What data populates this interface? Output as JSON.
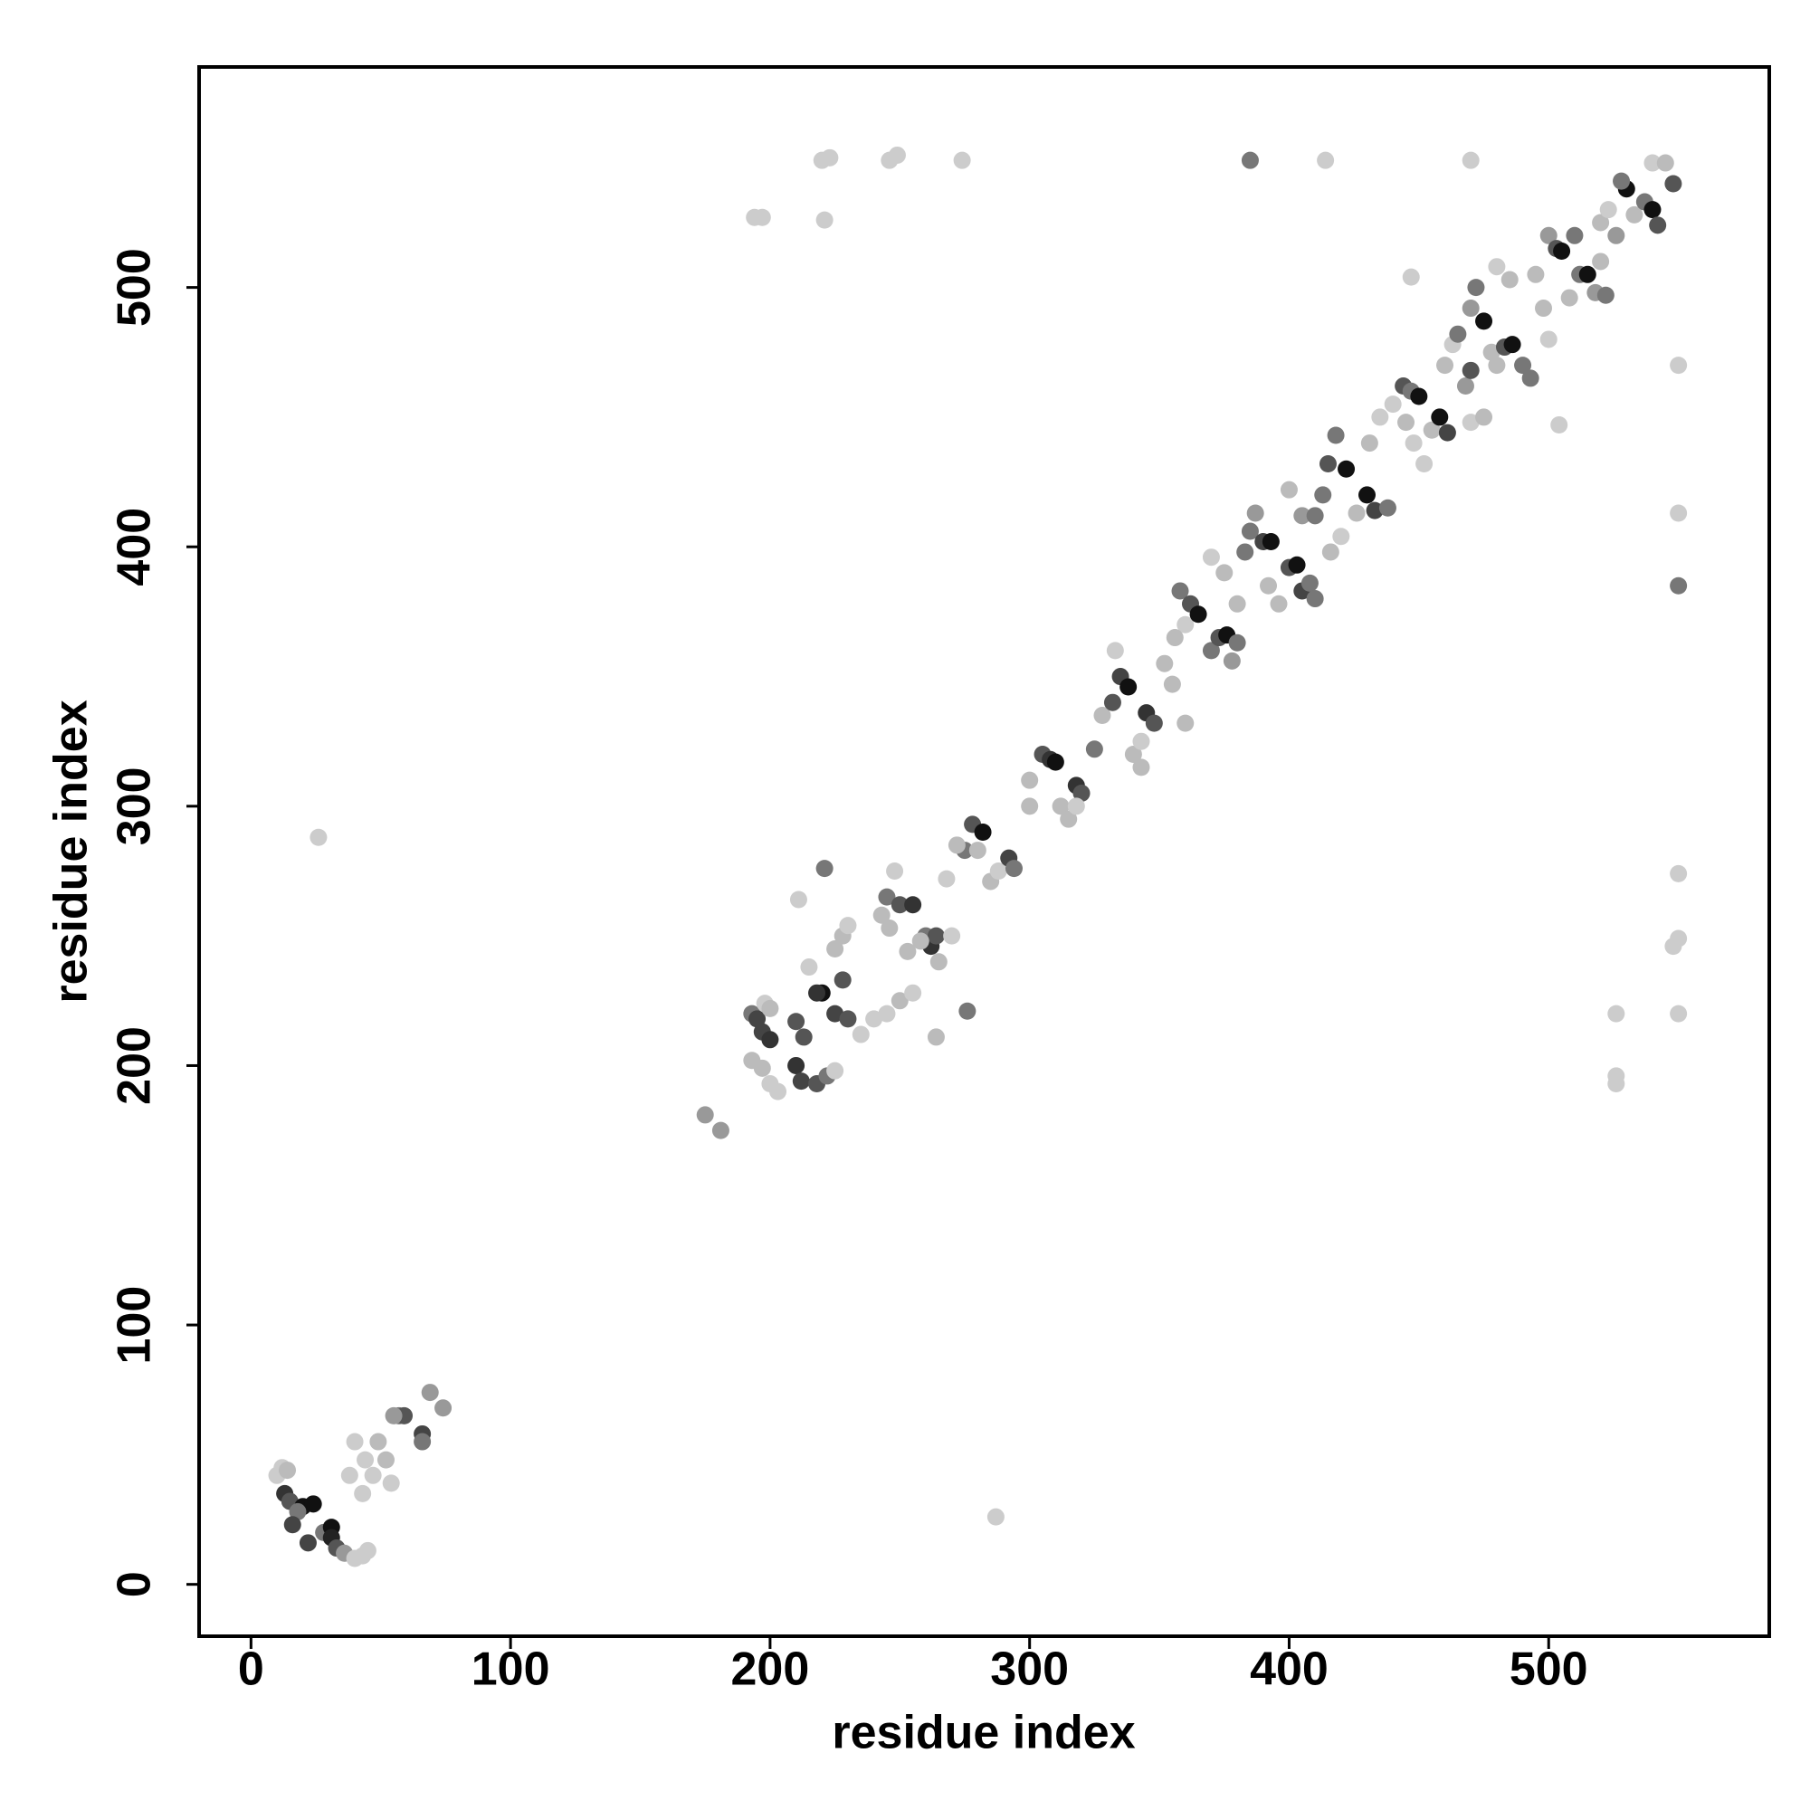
{
  "chart_data": {
    "type": "scatter",
    "x_label": "residue index",
    "y_label": "residue index",
    "xlim": [
      -20,
      585
    ],
    "ylim": [
      -20,
      585
    ],
    "xticks": [
      0,
      100,
      200,
      300,
      400,
      500
    ],
    "yticks": [
      0,
      100,
      200,
      300,
      400,
      500
    ],
    "grid": false,
    "x": [
      10,
      12,
      14,
      13,
      15,
      20,
      24,
      18,
      16,
      22,
      28,
      31,
      31,
      33,
      36,
      40,
      43,
      45,
      38,
      44,
      49,
      47,
      52,
      54,
      40,
      43,
      57,
      59,
      66,
      66,
      69,
      74,
      55,
      26,
      287,
      175,
      181,
      221,
      276,
      264,
      211,
      194,
      197,
      220,
      223,
      221,
      246,
      249,
      274,
      385,
      414,
      470,
      550,
      550,
      550,
      550,
      550,
      548,
      526,
      550,
      526,
      526,
      447,
      504,
      193,
      195,
      197,
      200,
      193,
      197,
      200,
      203,
      210,
      212,
      218,
      222,
      225,
      210,
      213,
      220,
      218,
      225,
      230,
      228,
      225,
      228,
      230,
      215,
      198,
      200,
      245,
      250,
      255,
      243,
      248,
      246,
      260,
      262,
      264,
      258,
      253,
      240,
      245,
      250,
      255,
      235,
      265,
      270,
      275,
      278,
      280,
      282,
      285,
      288,
      292,
      294,
      272,
      268,
      300,
      305,
      308,
      310,
      300,
      312,
      318,
      320,
      315,
      318,
      325,
      328,
      332,
      335,
      338,
      333,
      340,
      343,
      345,
      348,
      343,
      352,
      355,
      360,
      358,
      362,
      365,
      360,
      356,
      370,
      373,
      376,
      378,
      380,
      383,
      385,
      387,
      390,
      393,
      370,
      375,
      380,
      392,
      396,
      400,
      403,
      405,
      408,
      410,
      400,
      405,
      410,
      413,
      415,
      418,
      422,
      416,
      420,
      430,
      433,
      438,
      426,
      431,
      435,
      440,
      444,
      447,
      450,
      445,
      448,
      455,
      458,
      461,
      452,
      460,
      463,
      465,
      470,
      472,
      468,
      470,
      475,
      478,
      470,
      475,
      480,
      483,
      486,
      490,
      493,
      480,
      485,
      495,
      500,
      503,
      505,
      508,
      512,
      515,
      518,
      522,
      520,
      523,
      526,
      530,
      533,
      537,
      540,
      542,
      528,
      540,
      548,
      545,
      498,
      500,
      510,
      520
    ],
    "values": [
      42,
      45,
      44,
      35,
      32,
      30,
      31,
      28,
      23,
      16,
      20,
      22,
      18,
      14,
      12,
      10,
      11,
      13,
      42,
      48,
      55,
      42,
      48,
      39,
      55,
      35,
      65,
      65,
      58,
      55,
      74,
      68,
      65,
      288,
      26,
      181,
      175,
      276,
      221,
      211,
      264,
      527,
      527,
      549,
      550,
      526,
      549,
      551,
      549,
      549,
      549,
      549,
      470,
      413,
      385,
      274,
      249,
      246,
      220,
      220,
      196,
      193,
      504,
      447,
      220,
      218,
      213,
      210,
      202,
      199,
      193,
      190,
      200,
      194,
      193,
      196,
      198,
      217,
      211,
      228,
      228,
      220,
      218,
      233,
      245,
      250,
      254,
      238,
      224,
      222,
      265,
      262,
      262,
      258,
      275,
      253,
      250,
      246,
      250,
      248,
      244,
      218,
      220,
      225,
      228,
      212,
      240,
      250,
      283,
      293,
      283,
      290,
      271,
      275,
      280,
      276,
      285,
      272,
      310,
      320,
      318,
      317,
      300,
      300,
      308,
      305,
      295,
      300,
      322,
      335,
      340,
      350,
      346,
      360,
      320,
      325,
      336,
      332,
      315,
      355,
      347,
      370,
      383,
      378,
      374,
      332,
      365,
      360,
      365,
      366,
      356,
      363,
      398,
      406,
      413,
      402,
      402,
      396,
      390,
      378,
      385,
      378,
      392,
      393,
      383,
      386,
      380,
      422,
      412,
      412,
      420,
      432,
      443,
      430,
      398,
      404,
      420,
      414,
      415,
      413,
      440,
      450,
      455,
      462,
      460,
      458,
      448,
      440,
      445,
      450,
      444,
      432,
      470,
      478,
      482,
      492,
      500,
      462,
      468,
      487,
      475,
      448,
      450,
      470,
      477,
      478,
      470,
      465,
      508,
      503,
      505,
      520,
      515,
      514,
      496,
      505,
      505,
      498,
      497,
      525,
      530,
      520,
      538,
      528,
      533,
      530,
      524,
      541,
      548,
      540,
      548,
      492,
      480,
      520,
      510
    ],
    "colors": [
      "#ccc",
      "#ccc",
      "#bbb",
      "#333",
      "#555",
      "#111",
      "#111",
      "#777",
      "#444",
      "#444",
      "#777",
      "#111",
      "#222",
      "#555",
      "#999",
      "#ccc",
      "#ccc",
      "#ccc",
      "#ccc",
      "#ccc",
      "#bbb",
      "#ccc",
      "#bbb",
      "#ccc",
      "#ccc",
      "#ccc",
      "#777",
      "#555",
      "#444",
      "#777",
      "#999",
      "#999",
      "#999",
      "#ccc",
      "#ccc",
      "#999",
      "#999",
      "#777",
      "#777",
      "#bbb",
      "#ccc",
      "#ccc",
      "#ccc",
      "#ccc",
      "#ccc",
      "#ccc",
      "#ccc",
      "#ccc",
      "#ccc",
      "#777",
      "#ccc",
      "#ccc",
      "#ccc",
      "#ccc",
      "#777",
      "#ccc",
      "#ccc",
      "#ccc",
      "#ccc",
      "#ccc",
      "#ccc",
      "#ccc",
      "#ccc",
      "#ccc",
      "#777",
      "#444",
      "#444",
      "#333",
      "#bbb",
      "#bbb",
      "#ccc",
      "#ccc",
      "#333",
      "#444",
      "#555",
      "#777",
      "#ccc",
      "#555",
      "#555",
      "#111",
      "#333",
      "#444",
      "#555",
      "#555",
      "#bbb",
      "#bbb",
      "#ccc",
      "#ccc",
      "#ccc",
      "#bbb",
      "#777",
      "#555",
      "#333",
      "#bbb",
      "#ccc",
      "#bbb",
      "#777",
      "#333",
      "#555",
      "#bbb",
      "#bbb",
      "#ccc",
      "#ccc",
      "#bbb",
      "#ccc",
      "#ccc",
      "#bbb",
      "#ccc",
      "#777",
      "#555",
      "#bbb",
      "#111",
      "#bbb",
      "#ccc",
      "#444",
      "#777",
      "#bbb",
      "#ccc",
      "#bbb",
      "#555",
      "#333",
      "#111",
      "#bbb",
      "#bbb",
      "#333",
      "#555",
      "#bbb",
      "#ccc",
      "#777",
      "#bbb",
      "#555",
      "#444",
      "#111",
      "#ccc",
      "#bbb",
      "#ccc",
      "#333",
      "#555",
      "#bbb",
      "#bbb",
      "#bbb",
      "#ccc",
      "#777",
      "#555",
      "#111",
      "#bbb",
      "#bbb",
      "#777",
      "#555",
      "#111",
      "#999",
      "#777",
      "#777",
      "#777",
      "#999",
      "#444",
      "#111",
      "#ccc",
      "#bbb",
      "#bbb",
      "#bbb",
      "#bbb",
      "#555",
      "#111",
      "#444",
      "#777",
      "#777",
      "#bbb",
      "#999",
      "#777",
      "#777",
      "#555",
      "#777",
      "#111",
      "#bbb",
      "#ccc",
      "#111",
      "#444",
      "#777",
      "#bbb",
      "#bbb",
      "#ccc",
      "#ccc",
      "#555",
      "#777",
      "#111",
      "#bbb",
      "#ccc",
      "#bbb",
      "#111",
      "#444",
      "#ccc",
      "#bbb",
      "#ccc",
      "#777",
      "#999",
      "#777",
      "#999",
      "#555",
      "#111",
      "#bbb",
      "#ccc",
      "#bbb",
      "#bbb",
      "#555",
      "#111",
      "#777",
      "#777",
      "#ccc",
      "#bbb",
      "#bbb",
      "#999",
      "#555",
      "#111",
      "#bbb",
      "#777",
      "#111",
      "#999",
      "#777",
      "#bbb",
      "#ccc",
      "#999",
      "#111",
      "#bbb",
      "#777",
      "#111",
      "#555",
      "#777",
      "#ccc",
      "#555",
      "#bbb",
      "#bbb",
      "#ccc",
      "#777",
      "#bbb"
    ]
  }
}
